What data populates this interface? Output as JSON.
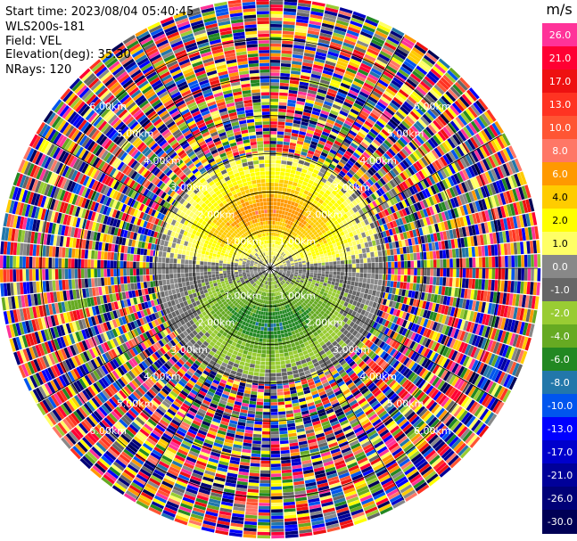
{
  "header": {
    "start_time": "Start time: 2023/08/04 05:40:45",
    "station": "WLS200s-181",
    "field": "Field: VEL",
    "elevation": "Elevation(deg): 35.30",
    "nrays": "NRays: 120"
  },
  "colorbar": {
    "unit": "m/s",
    "levels": [
      {
        "label": "26.0",
        "color": "#ff3399"
      },
      {
        "label": "21.0",
        "color": "#ff0033"
      },
      {
        "label": "17.0",
        "color": "#ee1111"
      },
      {
        "label": "13.0",
        "color": "#ff3322"
      },
      {
        "label": "10.0",
        "color": "#ff5533"
      },
      {
        "label": "8.0",
        "color": "#ff7766"
      },
      {
        "label": "6.0",
        "color": "#ff9900"
      },
      {
        "label": "4.0",
        "color": "#ffcc00"
      },
      {
        "label": "2.0",
        "color": "#ffff00"
      },
      {
        "label": "1.0",
        "color": "#ffff66"
      },
      {
        "label": "0.0",
        "color": "#888888"
      },
      {
        "label": "-1.0",
        "color": "#666666"
      },
      {
        "label": "-2.0",
        "color": "#99cc33"
      },
      {
        "label": "-4.0",
        "color": "#66aa22"
      },
      {
        "label": "-6.0",
        "color": "#228822"
      },
      {
        "label": "-8.0",
        "color": "#2277aa"
      },
      {
        "label": "-10.0",
        "color": "#0055ee"
      },
      {
        "label": "-13.0",
        "color": "#0000ff"
      },
      {
        "label": "-17.0",
        "color": "#0000cc"
      },
      {
        "label": "-21.0",
        "color": "#000099"
      },
      {
        "label": "-26.0",
        "color": "#000077"
      },
      {
        "label": "-30.0",
        "color": "#000055"
      }
    ]
  },
  "chart_data": {
    "type": "heatmap",
    "field": "VEL",
    "units": "m/s",
    "elevation_deg": 35.3,
    "nrays": 120,
    "max_range_km": 7.0,
    "range_rings_km": [
      1.0,
      2.0,
      3.0,
      4.0,
      5.0,
      6.0
    ],
    "ring_labels": [
      "1.00km",
      "2.00km",
      "3.00km",
      "4.00km",
      "5.00km",
      "6.00km"
    ],
    "spokes_deg": [
      0,
      30,
      60,
      90,
      120,
      150,
      180,
      210,
      240,
      270,
      300,
      330
    ],
    "velocity_profile": [
      {
        "range_km": 0.5,
        "north_side": 1.0,
        "south_side": -2.0
      },
      {
        "range_km": 1.0,
        "north_side": 4.0,
        "south_side": -5.0
      },
      {
        "range_km": 1.5,
        "north_side": 7.0,
        "south_side": -7.0
      },
      {
        "range_km": 2.0,
        "north_side": 4.0,
        "south_side": -4.0
      },
      {
        "range_km": 2.5,
        "north_side": 2.0,
        "south_side": -2.0
      },
      {
        "range_km": 3.0,
        "north_side": 1.5,
        "south_side": -1.0
      }
    ],
    "noise_beyond_km": 3.0
  }
}
